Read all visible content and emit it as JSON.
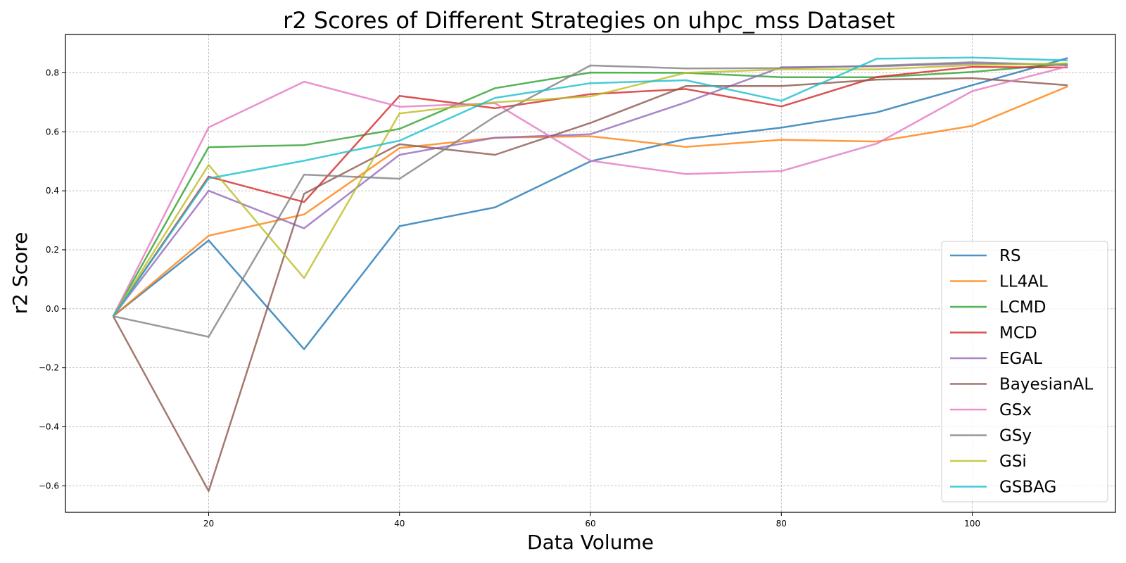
{
  "chart_data": {
    "type": "line",
    "title": "r2 Scores of Different Strategies on uhpc_mss Dataset",
    "xlabel": "Data Volume",
    "ylabel": "r2 Score",
    "xlim": [
      5,
      115
    ],
    "ylim": [
      -0.69,
      0.93
    ],
    "xticks": [
      20,
      40,
      60,
      80,
      100
    ],
    "yticks": [
      -0.6,
      -0.4,
      -0.2,
      0.0,
      0.2,
      0.4,
      0.6,
      0.8
    ],
    "ytick_labels": [
      "−0.6",
      "−0.4",
      "−0.2",
      "0.0",
      "0.2",
      "0.4",
      "0.6",
      "0.8"
    ],
    "grid": true,
    "legend_position": "lower-right",
    "x": [
      10,
      20,
      30,
      40,
      50,
      60,
      70,
      80,
      90,
      100,
      110
    ],
    "series": [
      {
        "name": "RS",
        "color": "#1f77b4",
        "values": [
          -0.025,
          0.232,
          -0.137,
          0.28,
          0.344,
          0.5,
          0.576,
          0.614,
          0.666,
          0.758,
          0.85
        ]
      },
      {
        "name": "LL4AL",
        "color": "#ff7f0e",
        "values": [
          -0.025,
          0.248,
          0.32,
          0.545,
          0.58,
          0.585,
          0.549,
          0.573,
          0.567,
          0.62,
          0.754
        ]
      },
      {
        "name": "LCMD",
        "color": "#2ca02c",
        "values": [
          -0.025,
          0.548,
          0.555,
          0.61,
          0.748,
          0.801,
          0.8,
          0.785,
          0.785,
          0.803,
          0.831
        ]
      },
      {
        "name": "MCD",
        "color": "#d62728",
        "values": [
          -0.025,
          0.448,
          0.362,
          0.722,
          0.68,
          0.728,
          0.745,
          0.686,
          0.786,
          0.82,
          0.818
        ]
      },
      {
        "name": "EGAL",
        "color": "#9467bd",
        "values": [
          -0.025,
          0.4,
          0.273,
          0.522,
          0.58,
          0.592,
          0.7,
          0.819,
          0.822,
          0.832,
          0.827
        ]
      },
      {
        "name": "BayesianAL",
        "color": "#8c564b",
        "values": [
          -0.025,
          -0.618,
          0.39,
          0.558,
          0.522,
          0.63,
          0.755,
          0.755,
          0.777,
          0.782,
          0.758
        ]
      },
      {
        "name": "GSx",
        "color": "#e377c2",
        "values": [
          -0.025,
          0.615,
          0.77,
          0.685,
          0.697,
          0.502,
          0.457,
          0.467,
          0.56,
          0.738,
          0.822
        ]
      },
      {
        "name": "GSy",
        "color": "#7f7f7f",
        "values": [
          -0.025,
          -0.095,
          0.455,
          0.441,
          0.652,
          0.825,
          0.815,
          0.816,
          0.824,
          0.836,
          0.826
        ]
      },
      {
        "name": "GSi",
        "color": "#bcbd22",
        "values": [
          -0.025,
          0.488,
          0.104,
          0.662,
          0.7,
          0.72,
          0.8,
          0.812,
          0.812,
          0.826,
          0.832
        ]
      },
      {
        "name": "GSBAG",
        "color": "#17becf",
        "values": [
          -0.025,
          0.442,
          0.502,
          0.57,
          0.715,
          0.765,
          0.775,
          0.705,
          0.848,
          0.852,
          0.842
        ]
      }
    ]
  }
}
